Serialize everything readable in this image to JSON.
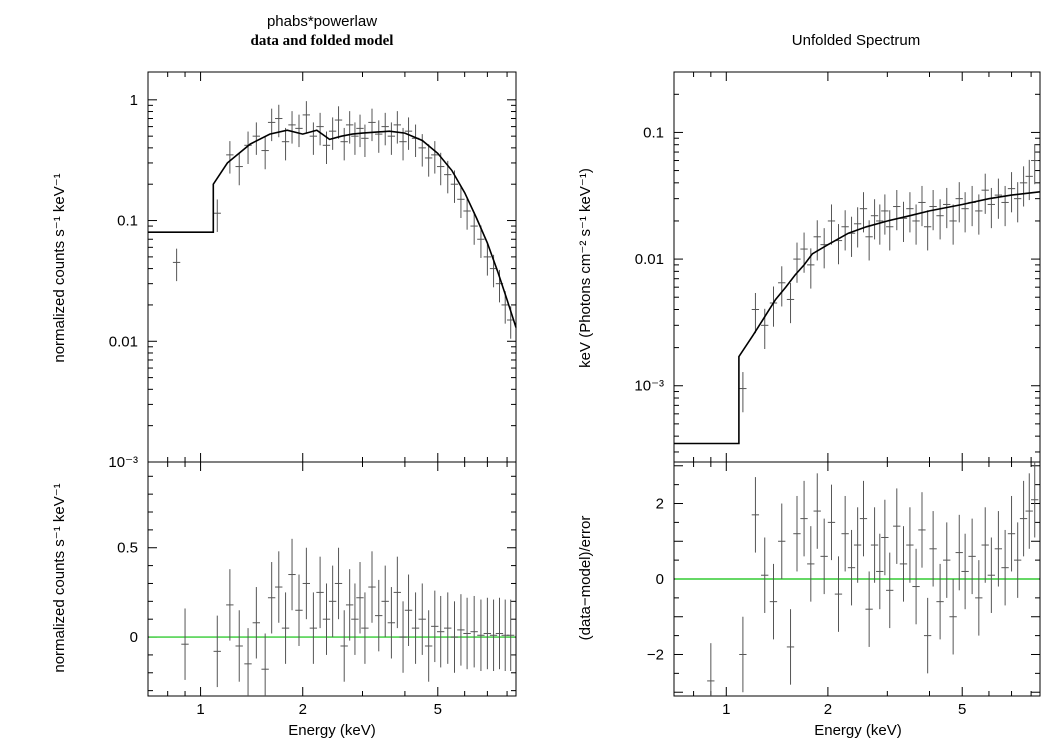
{
  "chart_data": [
    {
      "id": "left-top",
      "type": "scatter",
      "title": "phabs*powerlaw",
      "subtitle": "data and folded model",
      "xlabel": "",
      "ylabel": "normalized counts s⁻¹ keV⁻¹",
      "x_scale": "log",
      "y_scale": "log",
      "xlim": [
        0.7,
        8.5
      ],
      "ylim": [
        0.001,
        1.7
      ],
      "x_ticks": [
        {
          "value": 1,
          "label": "1"
        },
        {
          "value": 2,
          "label": "2"
        },
        {
          "value": 5,
          "label": "5"
        }
      ],
      "y_ticks": [
        {
          "value": 1,
          "label": "1"
        },
        {
          "value": 0.1,
          "label": "0.1"
        },
        {
          "value": 0.01,
          "label": "0.01"
        },
        {
          "value": 0.001,
          "label": "10⁻³"
        }
      ],
      "model": {
        "x": [
          0.7,
          1.09,
          1.09,
          1.2,
          1.4,
          1.6,
          1.8,
          2.0,
          2.2,
          2.4,
          2.6,
          2.8,
          3.0,
          3.3,
          3.6,
          4.0,
          4.5,
          5.0,
          5.5,
          6.0,
          6.5,
          7.0,
          7.5,
          8.0,
          8.5
        ],
        "y": [
          0.08,
          0.08,
          0.2,
          0.3,
          0.43,
          0.52,
          0.56,
          0.52,
          0.56,
          0.47,
          0.5,
          0.52,
          0.53,
          0.54,
          0.55,
          0.53,
          0.46,
          0.36,
          0.26,
          0.17,
          0.105,
          0.065,
          0.038,
          0.022,
          0.013
        ]
      },
      "data_points": {
        "x": [
          0.85,
          1.12,
          1.22,
          1.3,
          1.38,
          1.46,
          1.55,
          1.62,
          1.7,
          1.78,
          1.86,
          1.95,
          2.05,
          2.15,
          2.25,
          2.35,
          2.45,
          2.55,
          2.65,
          2.75,
          2.85,
          2.95,
          3.05,
          3.2,
          3.35,
          3.5,
          3.65,
          3.8,
          3.95,
          4.1,
          4.3,
          4.5,
          4.7,
          4.9,
          5.1,
          5.35,
          5.6,
          5.85,
          6.1,
          6.4,
          6.7,
          7.0,
          7.3,
          7.6,
          7.9,
          8.2
        ],
        "y": [
          0.045,
          0.115,
          0.35,
          0.28,
          0.42,
          0.5,
          0.38,
          0.65,
          0.7,
          0.45,
          0.62,
          0.58,
          0.75,
          0.5,
          0.6,
          0.42,
          0.55,
          0.68,
          0.45,
          0.62,
          0.5,
          0.58,
          0.48,
          0.65,
          0.52,
          0.6,
          0.5,
          0.62,
          0.45,
          0.55,
          0.48,
          0.4,
          0.33,
          0.35,
          0.28,
          0.24,
          0.2,
          0.15,
          0.12,
          0.09,
          0.07,
          0.05,
          0.04,
          0.03,
          0.02,
          0.015
        ],
        "y_err_frac": 0.3
      }
    },
    {
      "id": "left-bottom",
      "type": "scatter",
      "xlabel": "Energy (keV)",
      "ylabel": "normalized counts s⁻¹ keV⁻¹",
      "x_scale": "log",
      "y_scale": "linear",
      "xlim": [
        0.7,
        8.5
      ],
      "ylim": [
        -0.33,
        0.98
      ],
      "x_ticks": [
        {
          "value": 1,
          "label": "1"
        },
        {
          "value": 2,
          "label": "2"
        },
        {
          "value": 5,
          "label": "5"
        }
      ],
      "y_ticks": [
        {
          "value": 0.5,
          "label": "0.5"
        },
        {
          "value": 0,
          "label": "0"
        }
      ],
      "reference_line": {
        "y": 0,
        "color": "#33cc33"
      },
      "data_points": {
        "x": [
          0.9,
          1.12,
          1.22,
          1.3,
          1.38,
          1.46,
          1.55,
          1.62,
          1.7,
          1.78,
          1.86,
          1.95,
          2.05,
          2.15,
          2.25,
          2.35,
          2.45,
          2.55,
          2.65,
          2.75,
          2.85,
          2.95,
          3.05,
          3.2,
          3.35,
          3.5,
          3.65,
          3.8,
          3.95,
          4.1,
          4.3,
          4.5,
          4.7,
          4.9,
          5.1,
          5.35,
          5.6,
          5.85,
          6.1,
          6.4,
          6.7,
          7.0,
          7.3,
          7.6,
          7.9,
          8.2
        ],
        "y": [
          -0.04,
          -0.08,
          0.18,
          -0.05,
          -0.15,
          0.08,
          -0.18,
          0.22,
          0.28,
          0.05,
          0.35,
          0.15,
          0.3,
          0.05,
          0.25,
          0.1,
          0.2,
          0.3,
          -0.05,
          0.18,
          0.1,
          0.22,
          0.05,
          0.28,
          0.12,
          0.2,
          0.08,
          0.25,
          0.0,
          0.15,
          0.05,
          0.1,
          -0.05,
          0.06,
          0.03,
          0.05,
          0.0,
          0.04,
          0.02,
          0.03,
          0.01,
          0.02,
          0.01,
          0.02,
          0.01,
          0.01
        ],
        "y_err": 0.2
      }
    },
    {
      "id": "right-top",
      "type": "scatter",
      "title": "Unfolded Spectrum",
      "xlabel": "",
      "ylabel": "keV (Photons cm⁻² s⁻¹ keV⁻¹)",
      "x_scale": "log",
      "y_scale": "log",
      "xlim": [
        0.7,
        8.5
      ],
      "ylim": [
        0.00025,
        0.3
      ],
      "x_ticks": [
        {
          "value": 1,
          "label": "1"
        },
        {
          "value": 2,
          "label": "2"
        },
        {
          "value": 5,
          "label": "5"
        }
      ],
      "y_ticks": [
        {
          "value": 0.1,
          "label": "0.1"
        },
        {
          "value": 0.01,
          "label": "0.01"
        },
        {
          "value": 0.001,
          "label": "10⁻³"
        }
      ],
      "model": {
        "x": [
          0.7,
          1.09,
          1.09,
          1.2,
          1.3,
          1.4,
          1.5,
          1.6,
          1.7,
          1.8,
          2.0,
          2.3,
          2.6,
          3.0,
          3.5,
          4.0,
          5.0,
          6.0,
          7.0,
          8.5
        ],
        "y": [
          0.00035,
          0.00035,
          0.0017,
          0.0025,
          0.0035,
          0.0048,
          0.006,
          0.0075,
          0.009,
          0.011,
          0.013,
          0.016,
          0.018,
          0.02,
          0.022,
          0.024,
          0.027,
          0.03,
          0.032,
          0.034
        ]
      },
      "data_points": {
        "x": [
          1.12,
          1.22,
          1.3,
          1.38,
          1.46,
          1.55,
          1.62,
          1.7,
          1.78,
          1.86,
          1.95,
          2.05,
          2.15,
          2.25,
          2.35,
          2.45,
          2.55,
          2.65,
          2.75,
          2.85,
          2.95,
          3.05,
          3.2,
          3.35,
          3.5,
          3.65,
          3.8,
          3.95,
          4.1,
          4.3,
          4.5,
          4.7,
          4.9,
          5.1,
          5.35,
          5.6,
          5.85,
          6.1,
          6.4,
          6.7,
          7.0,
          7.3,
          7.6,
          7.9,
          8.2
        ],
        "y": [
          0.00095,
          0.004,
          0.003,
          0.0045,
          0.0065,
          0.0048,
          0.01,
          0.012,
          0.009,
          0.015,
          0.013,
          0.02,
          0.014,
          0.018,
          0.016,
          0.019,
          0.025,
          0.015,
          0.022,
          0.02,
          0.024,
          0.018,
          0.026,
          0.021,
          0.025,
          0.02,
          0.028,
          0.018,
          0.026,
          0.022,
          0.027,
          0.02,
          0.03,
          0.025,
          0.028,
          0.024,
          0.035,
          0.027,
          0.032,
          0.028,
          0.036,
          0.03,
          0.04,
          0.045,
          0.06
        ],
        "y_err_frac": 0.35
      }
    },
    {
      "id": "right-bottom",
      "type": "scatter",
      "xlabel": "Energy (keV)",
      "ylabel": "(data−model)/error",
      "x_scale": "log",
      "y_scale": "linear",
      "xlim": [
        0.7,
        8.5
      ],
      "ylim": [
        -3.1,
        3.1
      ],
      "x_ticks": [
        {
          "value": 1,
          "label": "1"
        },
        {
          "value": 2,
          "label": "2"
        },
        {
          "value": 5,
          "label": "5"
        }
      ],
      "y_ticks": [
        {
          "value": 2,
          "label": "2"
        },
        {
          "value": 0,
          "label": "0"
        },
        {
          "value": -2,
          "label": "−2"
        }
      ],
      "reference_line": {
        "y": 0,
        "color": "#33cc33"
      },
      "data_points": {
        "x": [
          0.9,
          1.12,
          1.22,
          1.3,
          1.38,
          1.46,
          1.55,
          1.62,
          1.7,
          1.78,
          1.86,
          1.95,
          2.05,
          2.15,
          2.25,
          2.35,
          2.45,
          2.55,
          2.65,
          2.75,
          2.85,
          2.95,
          3.05,
          3.2,
          3.35,
          3.5,
          3.65,
          3.8,
          3.95,
          4.1,
          4.3,
          4.5,
          4.7,
          4.9,
          5.1,
          5.35,
          5.6,
          5.85,
          6.1,
          6.4,
          6.7,
          7.0,
          7.3,
          7.6,
          7.9,
          8.2
        ],
        "y": [
          -2.7,
          -2.0,
          1.7,
          0.1,
          -0.6,
          1.0,
          -1.8,
          1.2,
          1.6,
          0.4,
          1.8,
          0.6,
          1.5,
          -0.4,
          1.2,
          0.3,
          0.9,
          1.6,
          -0.8,
          0.9,
          0.2,
          1.1,
          -0.3,
          1.4,
          0.4,
          0.9,
          -0.2,
          1.3,
          -1.5,
          0.8,
          -0.6,
          0.5,
          -1.0,
          0.7,
          0.2,
          0.6,
          -0.5,
          0.9,
          0.1,
          0.8,
          0.3,
          1.2,
          0.5,
          1.6,
          1.8,
          2.1
        ],
        "y_err": 1.0
      }
    }
  ]
}
